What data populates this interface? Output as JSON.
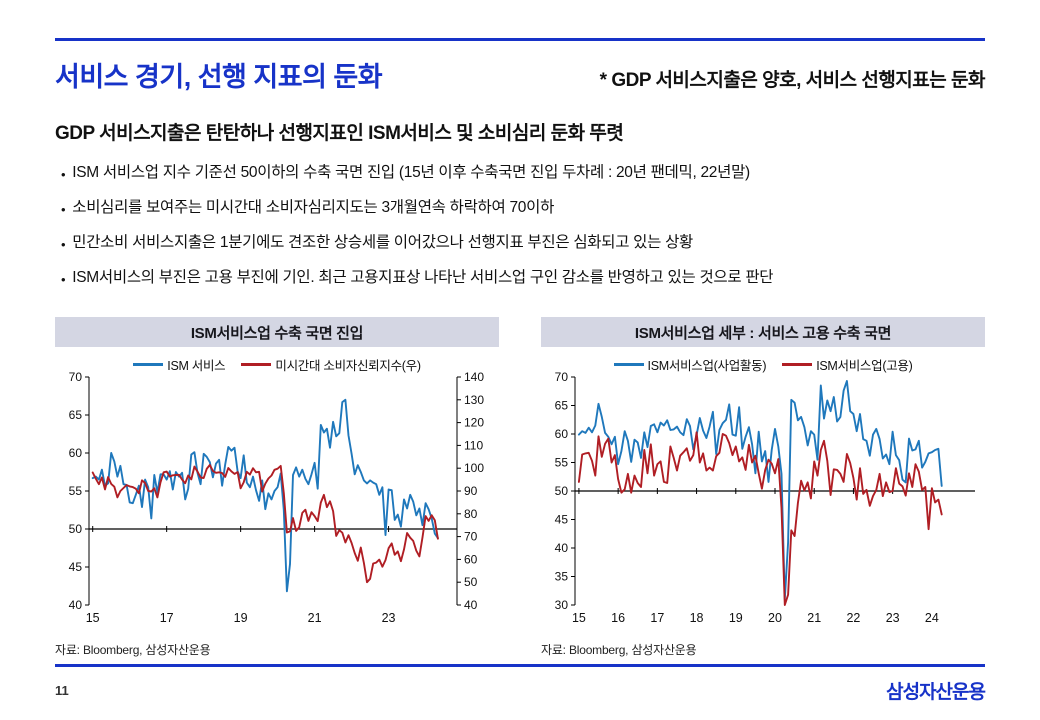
{
  "header": {
    "title": "서비스 경기,  선행 지표의 둔화",
    "note": "* GDP 서비스지출은 양호, 서비스 선행지표는 둔화"
  },
  "summary": {
    "heading": "GDP 서비스지출은 탄탄하나 선행지표인 ISM서비스 및 소비심리 둔화 뚜렷",
    "bullets": [
      "ISM 서비스업 지수 기준선 50이하의 수축 국면 진입 (15년 이후 수축국면 진입 두차례 : 20년 팬데믹, 22년말)",
      "소비심리를 보여주는 미시간대 소비자심리지도는  3개월연속 하락하여 70이하",
      "민간소비 서비스지출은 1분기에도 견조한 상승세를 이어갔으나 선행지표 부진은 심화되고 있는 상황",
      "ISM서비스의 부진은 고용 부진에 기인. 최근 고용지표상 나타난 서비스업 구인 감소를 반영하고 있는 것으로 판단"
    ]
  },
  "colors": {
    "accent_blue": "#1733c8",
    "panel_header_bg": "#d4d6e3",
    "line_blue": "#1f78bc",
    "line_red": "#b01e24"
  },
  "footer": {
    "page_number": "11",
    "logo": "삼성자산운용"
  },
  "chart_data": [
    {
      "type": "line",
      "title": "ISM서비스업 수축 국면 진입",
      "source": "자료: Bloomberg, 삼성자산운용",
      "x_start": 2015,
      "x_step_months": 1,
      "x_domain": [
        2014.9,
        2024.85
      ],
      "xticks": [
        [
          2015,
          "15"
        ],
        [
          2017,
          "17"
        ],
        [
          2019,
          "19"
        ],
        [
          2021,
          "21"
        ],
        [
          2023,
          "23"
        ]
      ],
      "left_axis": {
        "min": 40,
        "max": 70,
        "ticks": [
          40,
          45,
          50,
          55,
          60,
          65,
          70
        ]
      },
      "right_axis": {
        "min": 40,
        "max": 140,
        "ticks": [
          40,
          50,
          60,
          70,
          80,
          90,
          100,
          110,
          120,
          130,
          140
        ]
      },
      "ref_value": 50,
      "grid": false,
      "legend_position": "top",
      "series": [
        {
          "name": "ISM 서비스",
          "axis": "left",
          "color": "#1f78bc",
          "values": [
            56.7,
            56.9,
            56.5,
            57.8,
            55.7,
            56.0,
            60.0,
            58.9,
            56.9,
            58.3,
            55.9,
            55.8,
            53.5,
            53.4,
            54.5,
            55.7,
            52.9,
            56.5,
            55.5,
            51.4,
            57.1,
            54.8,
            57.2,
            57.2,
            56.5,
            57.6,
            55.2,
            57.5,
            56.9,
            57.4,
            53.9,
            55.3,
            59.8,
            60.1,
            57.4,
            55.9,
            59.9,
            59.5,
            58.8,
            56.8,
            58.6,
            59.1,
            55.7,
            58.5,
            60.8,
            60.3,
            60.7,
            57.6,
            56.7,
            59.7,
            56.1,
            55.5,
            56.9,
            55.1,
            53.7,
            56.4,
            52.6,
            54.7,
            53.9,
            55.0,
            55.5,
            57.3,
            52.5,
            41.8,
            45.4,
            57.1,
            58.1,
            56.9,
            57.8,
            56.6,
            55.9,
            57.2,
            58.7,
            55.3,
            63.7,
            62.7,
            63.2,
            60.7,
            64.1,
            62.2,
            62.6,
            66.7,
            67.0,
            62.3,
            59.9,
            57.2,
            58.4,
            57.5,
            56.4,
            56.0,
            56.4,
            56.1,
            55.9,
            54.5,
            55.5,
            49.2,
            55.2,
            55.1,
            51.2,
            51.9,
            50.3,
            53.9,
            52.7,
            54.5,
            53.6,
            51.8,
            52.7,
            50.5,
            53.4,
            52.6,
            51.4,
            49.4,
            48.8
          ]
        },
        {
          "name": "미시간대 소비자신뢰지수(우)",
          "axis": "right",
          "color": "#b01e24",
          "values": [
            98.1,
            95.4,
            93.0,
            95.9,
            90.7,
            96.1,
            93.1,
            91.9,
            87.2,
            90.0,
            91.3,
            92.6,
            92.0,
            91.7,
            91.0,
            89.0,
            94.7,
            93.5,
            90.0,
            89.8,
            91.2,
            87.2,
            93.8,
            98.2,
            98.5,
            96.3,
            96.9,
            97.0,
            97.1,
            95.0,
            93.4,
            96.8,
            95.1,
            100.7,
            98.5,
            95.9,
            95.7,
            99.7,
            101.4,
            98.8,
            98.0,
            98.2,
            97.9,
            96.2,
            100.1,
            98.6,
            97.5,
            98.3,
            91.2,
            93.8,
            98.4,
            97.2,
            100.0,
            98.2,
            98.4,
            89.8,
            93.2,
            95.5,
            96.8,
            99.3,
            99.8,
            101.0,
            89.1,
            71.8,
            72.3,
            78.1,
            72.5,
            74.1,
            80.4,
            81.8,
            76.9,
            80.7,
            79.0,
            76.8,
            84.9,
            88.3,
            82.9,
            85.5,
            81.2,
            70.3,
            72.8,
            71.7,
            67.4,
            70.6,
            67.2,
            62.8,
            59.4,
            65.2,
            58.4,
            50.0,
            51.5,
            58.2,
            58.6,
            59.9,
            56.8,
            59.7,
            64.9,
            67.0,
            62.0,
            63.5,
            59.2,
            64.4,
            71.6,
            69.5,
            68.1,
            63.8,
            61.3,
            69.7,
            79.0,
            76.9,
            79.4,
            77.2,
            69.1
          ]
        }
      ]
    },
    {
      "type": "line",
      "title": "ISM서비스업 세부 : 서비스 고용 수축 국면",
      "source": "자료: Bloomberg, 삼성자산운용",
      "x_start": 2015,
      "x_step_months": 1,
      "x_domain": [
        2014.9,
        2025.1
      ],
      "xticks": [
        [
          2015,
          "15"
        ],
        [
          2016,
          "16"
        ],
        [
          2017,
          "17"
        ],
        [
          2018,
          "18"
        ],
        [
          2019,
          "19"
        ],
        [
          2020,
          "20"
        ],
        [
          2021,
          "21"
        ],
        [
          2022,
          "22"
        ],
        [
          2023,
          "23"
        ],
        [
          2024,
          "24"
        ]
      ],
      "left_axis": {
        "min": 30,
        "max": 70,
        "ticks": [
          30,
          35,
          40,
          45,
          50,
          55,
          60,
          65,
          70
        ]
      },
      "right_axis": null,
      "ref_value": 50,
      "grid": false,
      "legend_position": "top",
      "series": [
        {
          "name": "ISM서비스업(사업활동)",
          "axis": "left",
          "color": "#1f78bc",
          "values": [
            59.9,
            60.5,
            60.2,
            61.1,
            60.3,
            61.5,
            65.3,
            63.0,
            60.2,
            59.5,
            58.2,
            59.5,
            54.7,
            57.0,
            60.5,
            58.8,
            55.1,
            59.0,
            58.5,
            55.8,
            60.3,
            57.7,
            61.4,
            61.7,
            60.3,
            62.0,
            61.5,
            62.4,
            60.7,
            60.8,
            61.3,
            60.3,
            59.8,
            62.6,
            61.4,
            57.3,
            59.8,
            62.8,
            60.6,
            59.3,
            61.3,
            63.9,
            56.5,
            60.7,
            61.9,
            62.5,
            65.2,
            59.9,
            59.7,
            64.7,
            57.4,
            59.5,
            61.2,
            58.2,
            53.1,
            60.4,
            55.2,
            57.0,
            51.6,
            57.2,
            60.9,
            57.8,
            53.0,
            31.0,
            41.0,
            66.0,
            65.5,
            62.4,
            63.0,
            61.2,
            58.0,
            60.5,
            59.9,
            55.5,
            68.5,
            62.7,
            65.9,
            64.0,
            66.5,
            62.2,
            63.0,
            67.6,
            69.3,
            64.0,
            63.5,
            60.5,
            63.5,
            59.1,
            58.8,
            56.2,
            59.9,
            60.9,
            59.1,
            55.7,
            56.4,
            54.7,
            60.4,
            56.3,
            55.4,
            52.0,
            51.5,
            59.2,
            57.1,
            57.3,
            58.8,
            54.1,
            55.1,
            56.6,
            56.8,
            57.2,
            57.4,
            50.9
          ]
        },
        {
          "name": "ISM서비스업(고용)",
          "axis": "left",
          "color": "#b01e24",
          "values": [
            51.6,
            56.4,
            56.6,
            56.7,
            55.3,
            52.7,
            59.6,
            56.0,
            58.3,
            59.2,
            55.0,
            56.3,
            52.1,
            49.7,
            50.3,
            53.0,
            49.7,
            52.7,
            51.4,
            50.7,
            57.2,
            53.1,
            58.2,
            52.7,
            54.7,
            55.2,
            51.6,
            51.4,
            57.8,
            55.8,
            53.6,
            56.2,
            56.8,
            57.5,
            55.3,
            56.3,
            60.3,
            55.0,
            56.6,
            53.6,
            54.1,
            53.6,
            56.1,
            56.7,
            60.0,
            59.7,
            58.4,
            56.3,
            57.8,
            55.2,
            55.9,
            53.7,
            58.1,
            55.0,
            56.2,
            53.1,
            50.4,
            53.7,
            55.5,
            54.8,
            53.1,
            55.6,
            47.0,
            30.0,
            31.8,
            43.1,
            42.1,
            47.9,
            51.8,
            50.1,
            51.5,
            48.7,
            55.2,
            52.7,
            57.2,
            58.8,
            55.3,
            49.3,
            53.8,
            53.7,
            53.0,
            51.6,
            56.5,
            54.9,
            52.3,
            48.5,
            54.0,
            49.5,
            50.2,
            47.4,
            49.1,
            50.2,
            53.0,
            49.1,
            51.5,
            49.8,
            50.0,
            54.0,
            51.3,
            50.8,
            49.2,
            53.1,
            50.7,
            54.7,
            53.4,
            50.2,
            50.7,
            43.3,
            50.5,
            48.0,
            48.5,
            45.9
          ]
        }
      ]
    }
  ]
}
